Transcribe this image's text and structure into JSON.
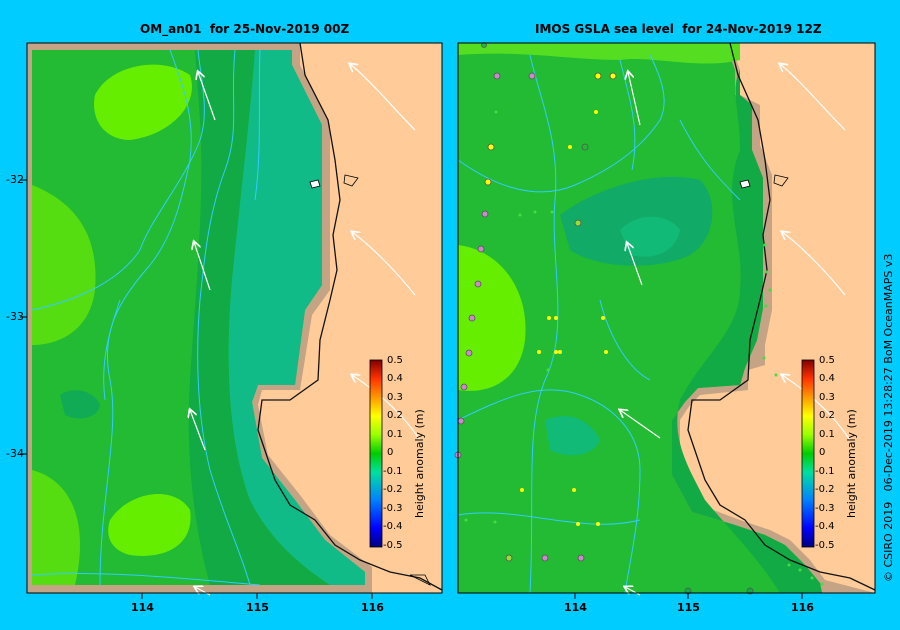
{
  "left_panel": {
    "title": "OM_an01  for 25-Nov-2019 00Z"
  },
  "right_panel": {
    "title": "IMOS GSLA sea level  for 24-Nov-2019 12Z"
  },
  "lat_ticks": [
    "-32",
    "-33",
    "-34"
  ],
  "lon_ticks": [
    "114",
    "115",
    "116"
  ],
  "colorbar": {
    "label": "height anomaly (m)",
    "ticks": [
      "0.5",
      "0.4",
      "0.3",
      "0.2",
      "0.1",
      "0",
      "-0.1",
      "-0.2",
      "-0.3",
      "-0.4",
      "-0.5"
    ]
  },
  "credit": "© CSIRO 2019   06-Dec-2019 13:28:27 BoM OceanMAPS v3",
  "colors": {
    "background": "#00ccff",
    "land": "#ffcc99",
    "land_mask": "#c4a484",
    "contour": "#33ccff"
  }
}
